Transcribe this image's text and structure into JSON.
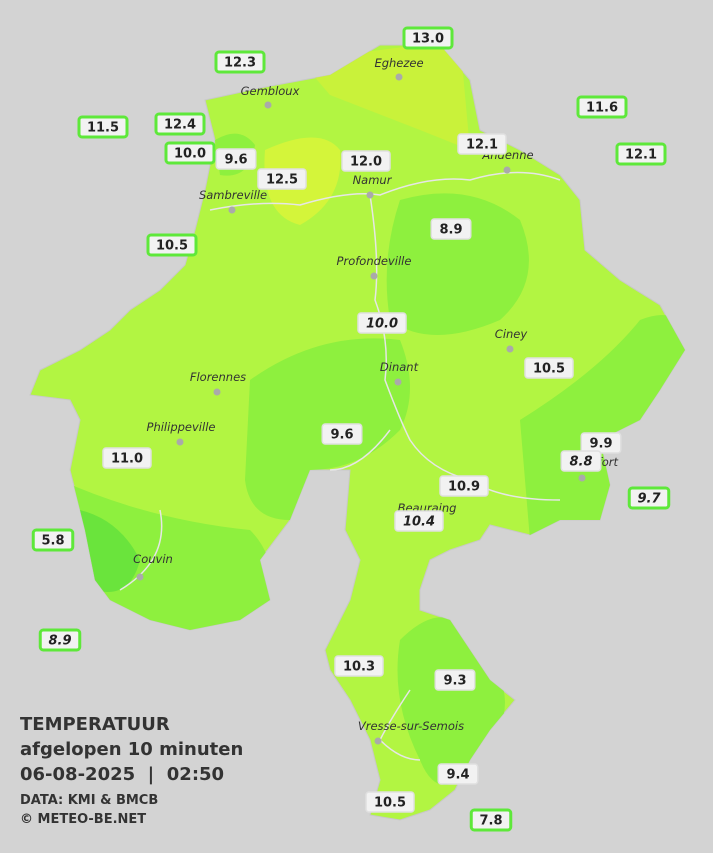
{
  "legend": {
    "title": "TEMPERATUUR",
    "subtitle": "afgelopen 10 minuten",
    "datetime": "06-08-2025  |  02:50",
    "source": "DATA: KMI & BMCB",
    "credit": "© METEO-BE.NET"
  },
  "towns": [
    "Eghezee",
    "Gembloux",
    "Andenne",
    "Namur",
    "Sambreville",
    "Profondeville",
    "Ciney",
    "Dinant",
    "Florennes",
    "Philippeville",
    "Rochefort",
    "Beauraing",
    "Couvin",
    "Vresse-sur-Semois"
  ],
  "stations": [
    {
      "label": "13.0",
      "italic": false
    },
    {
      "label": "12.3",
      "italic": false
    },
    {
      "label": "11.6",
      "italic": false
    },
    {
      "label": "11.5",
      "italic": false
    },
    {
      "label": "12.4",
      "italic": false
    },
    {
      "label": "12.1",
      "italic": false
    },
    {
      "label": "12.1",
      "italic": false
    },
    {
      "label": "10.0",
      "italic": false
    },
    {
      "label": "9.6",
      "italic": false
    },
    {
      "label": "12.0",
      "italic": false
    },
    {
      "label": "12.5",
      "italic": false
    },
    {
      "label": "8.9",
      "italic": false
    },
    {
      "label": "10.5",
      "italic": false
    },
    {
      "label": "10.0",
      "italic": true
    },
    {
      "label": "10.5",
      "italic": false
    },
    {
      "label": "9.6",
      "italic": false
    },
    {
      "label": "9.9",
      "italic": false
    },
    {
      "label": "8.8",
      "italic": true
    },
    {
      "label": "11.0",
      "italic": false
    },
    {
      "label": "10.9",
      "italic": false
    },
    {
      "label": "9.7",
      "italic": true
    },
    {
      "label": "10.4",
      "italic": true
    },
    {
      "label": "5.8",
      "italic": false
    },
    {
      "label": "8.9",
      "italic": true
    },
    {
      "label": "10.3",
      "italic": false
    },
    {
      "label": "9.3",
      "italic": false
    },
    {
      "label": "9.4",
      "italic": false
    },
    {
      "label": "10.5",
      "italic": false
    },
    {
      "label": "7.8",
      "italic": false
    }
  ]
}
